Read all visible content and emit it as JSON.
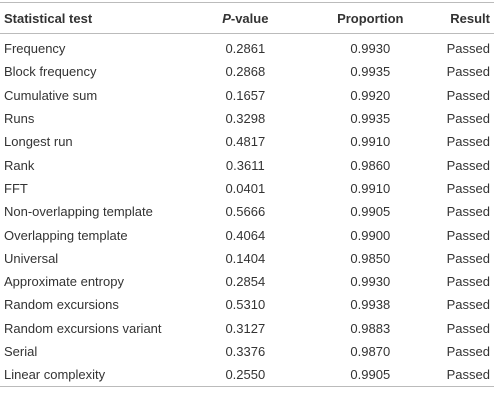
{
  "table": {
    "header": [
      "Statistical test",
      [
        "P",
        "-value"
      ],
      "Proportion",
      "Result"
    ],
    "rows": [
      [
        "Frequency",
        "0.2861",
        "0.9930",
        "Passed"
      ],
      [
        "Block frequency",
        "0.2868",
        "0.9935",
        "Passed"
      ],
      [
        "Cumulative sum",
        "0.1657",
        "0.9920",
        "Passed"
      ],
      [
        "Runs",
        "0.3298",
        "0.9935",
        "Passed"
      ],
      [
        "Longest run",
        "0.4817",
        "0.9910",
        "Passed"
      ],
      [
        "Rank",
        "0.3611",
        "0.9860",
        "Passed"
      ],
      [
        "FFT",
        "0.0401",
        "0.9910",
        "Passed"
      ],
      [
        "Non-overlapping template",
        "0.5666",
        "0.9905",
        "Passed"
      ],
      [
        "Overlapping template",
        "0.4064",
        "0.9900",
        "Passed"
      ],
      [
        "Universal",
        "0.1404",
        "0.9850",
        "Passed"
      ],
      [
        "Approximate entropy",
        "0.2854",
        "0.9930",
        "Passed"
      ],
      [
        "Random excursions",
        "0.5310",
        "0.9938",
        "Passed"
      ],
      [
        "Random excursions variant",
        "0.3127",
        "0.9883",
        "Passed"
      ],
      [
        "Serial",
        "0.3376",
        "0.9870",
        "Passed"
      ],
      [
        "Linear complexity",
        "0.2550",
        "0.9905",
        "Passed"
      ]
    ]
  }
}
